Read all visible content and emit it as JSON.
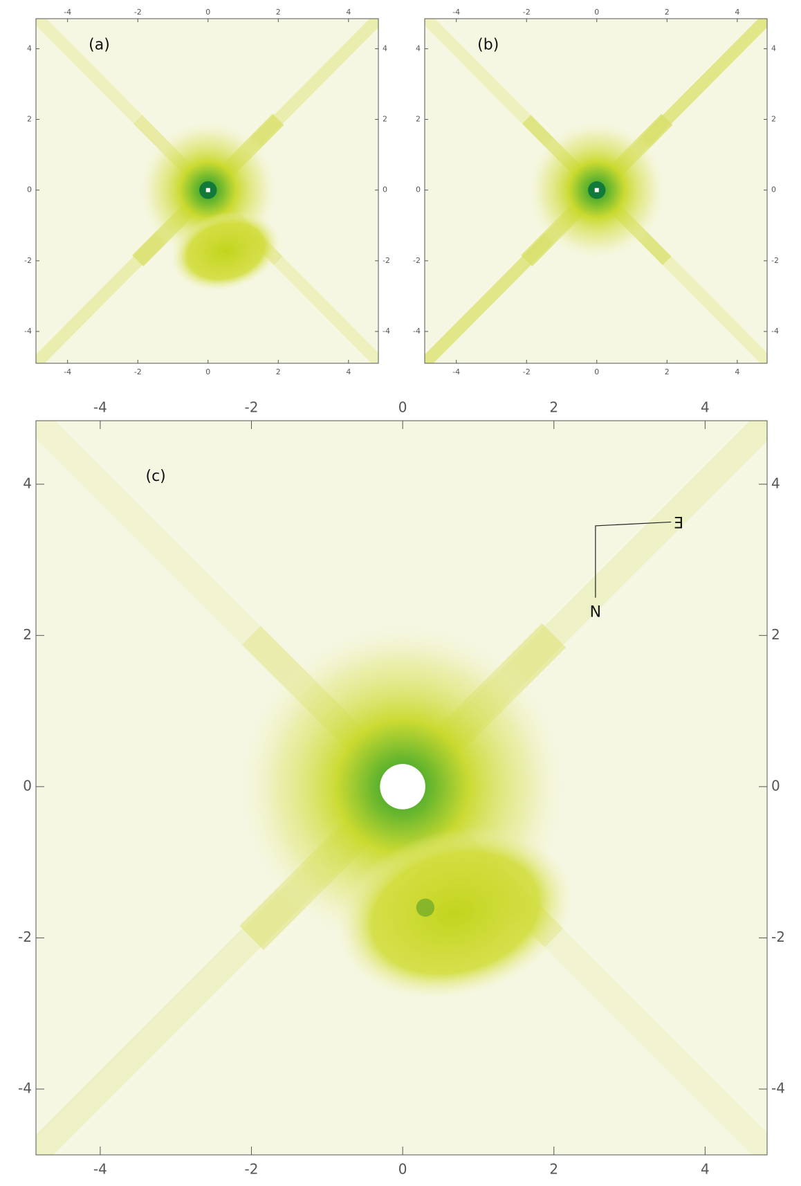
{
  "chart_data": [
    {
      "type": "image",
      "label": "(a)",
      "xlim": [
        -4.9,
        4.85
      ],
      "ylim": [
        -4.9,
        4.85
      ],
      "xticks": [
        -4,
        -2,
        0,
        2,
        4
      ],
      "yticks": [
        -4,
        -2,
        0,
        2,
        4
      ]
    },
    {
      "type": "image",
      "label": "(b)",
      "xlim": [
        -4.9,
        4.85
      ],
      "ylim": [
        -4.9,
        4.85
      ],
      "xticks": [
        -4,
        -2,
        0,
        2,
        4
      ],
      "yticks": [
        -4,
        -2,
        0,
        2,
        4
      ]
    },
    {
      "type": "image",
      "label": "(c)",
      "xlim": [
        -4.85,
        4.82
      ],
      "ylim": [
        -4.87,
        4.84
      ],
      "xticks": [
        -4,
        -2,
        0,
        2,
        4
      ],
      "yticks": [
        -4,
        -2,
        0,
        2,
        4
      ],
      "compass": {
        "north": "N",
        "east": "E"
      }
    }
  ]
}
